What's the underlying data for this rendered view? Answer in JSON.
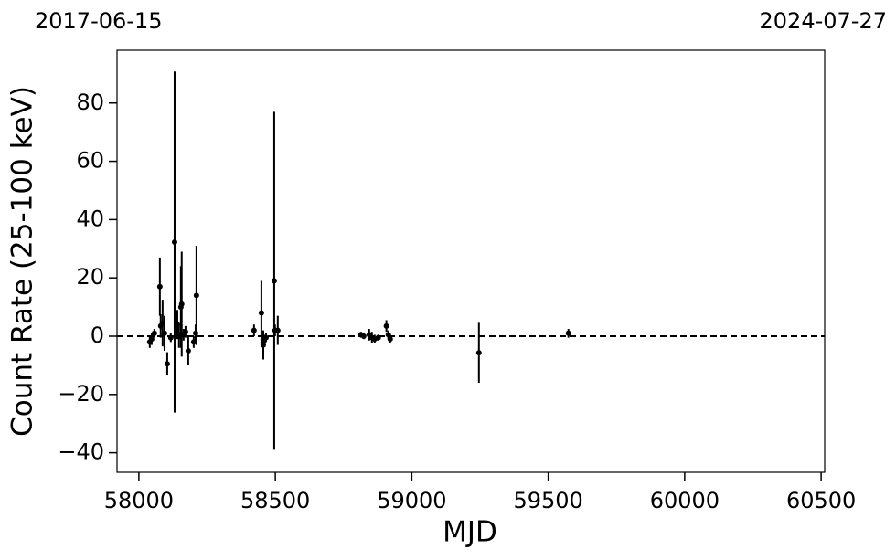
{
  "chart_data": {
    "type": "scatter",
    "top_left_label": "2017-06-15",
    "top_right_label": "2024-07-27",
    "xlabel": "MJD",
    "ylabel": "Count Rate (25-100 keV)",
    "color": "#000000",
    "hline": 0,
    "xlim": [
      57920,
      60513
    ],
    "ylim": [
      -46.7,
      98.1
    ],
    "xticks": [
      58000,
      58500,
      59000,
      59500,
      60000,
      60500
    ],
    "yticks": [
      {
        "value": -40,
        "label": "−40"
      },
      {
        "value": -20,
        "label": "−20"
      },
      0,
      20,
      40,
      60,
      80
    ],
    "x": [
      58040,
      58047,
      58057,
      58077,
      58080,
      58087,
      58094,
      58104,
      58117,
      58131,
      58141,
      58147,
      58154,
      58157,
      58164,
      58171,
      58181,
      58201,
      58208,
      58211,
      58422,
      58449,
      58456,
      58459,
      58466,
      58496,
      58499,
      58509,
      58814,
      58824,
      58844,
      58854,
      58864,
      58877,
      58907,
      58914,
      58921,
      59246,
      59574
    ],
    "values": [
      -2,
      -1,
      1,
      17,
      3.5,
      4.5,
      1,
      -9.5,
      -0.5,
      32.3,
      4,
      0,
      10,
      11,
      0.5,
      1.5,
      -5,
      -2,
      1,
      14,
      2,
      8,
      -3,
      -1.5,
      -0.5,
      19,
      2,
      2,
      0.5,
      0,
      0.5,
      -0.5,
      -1,
      -0.5,
      3.5,
      0.5,
      -1,
      -5.7,
      1
    ],
    "errors": [
      2,
      2,
      1.5,
      10,
      4,
      8,
      6,
      4,
      1.5,
      58.5,
      5,
      4,
      14,
      18,
      2,
      2,
      5,
      2,
      3,
      17,
      2,
      11,
      5,
      2,
      1.5,
      58,
      2,
      5,
      1,
      1,
      2,
      2,
      1.5,
      1,
      2,
      1.5,
      1.5,
      10.3,
      1.5
    ]
  }
}
